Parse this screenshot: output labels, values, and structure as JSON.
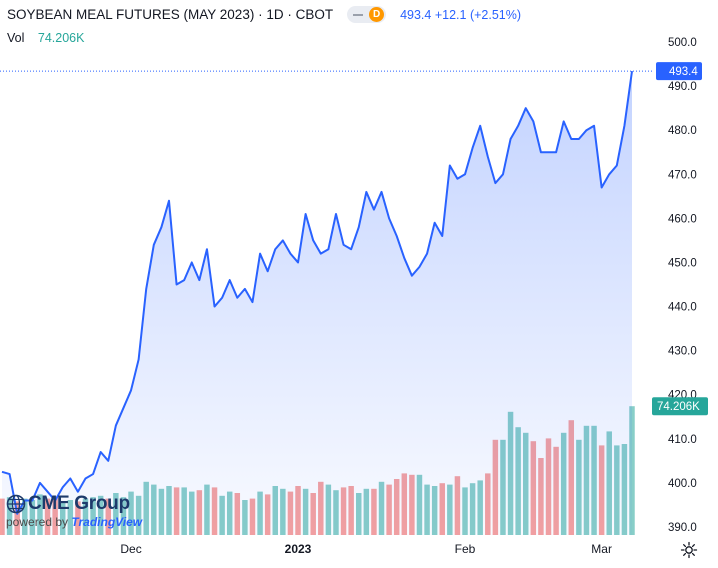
{
  "header": {
    "title": "SOYBEAN MEAL FUTURES (MAY 2023) · 1D · CBOT",
    "pill_letter": "D",
    "last": "493.4",
    "change": "+12.1",
    "change_pct": "(+2.51%)"
  },
  "volume": {
    "label": "Vol",
    "value": "74.206K"
  },
  "logo": {
    "brand": "CME Group",
    "powered": "powered by",
    "tv": "TradingView"
  },
  "colors": {
    "line": "#2962ff",
    "vol_up": "#26a69a",
    "vol_down": "#ef5350"
  },
  "chart_data": {
    "type": "line",
    "x_tick_labels": [
      "Dec",
      "2023",
      "Feb",
      "Mar"
    ],
    "y_tick_labels": [
      "500.0",
      "490.0",
      "480.0",
      "470.0",
      "460.0",
      "450.0",
      "440.0",
      "430.0",
      "420.0",
      "410.0",
      "400.0",
      "390.0"
    ],
    "ylim": [
      385,
      505
    ],
    "last_price_label": "493.4",
    "last_volume_label": "74.206K",
    "price": [
      402.5,
      402,
      393,
      396,
      396,
      400,
      398,
      396,
      399,
      401,
      398,
      401,
      402,
      407,
      405,
      413,
      417,
      421,
      428,
      444,
      454,
      458,
      464,
      445,
      446,
      450,
      446,
      453,
      440,
      442,
      446,
      442,
      444,
      441,
      452,
      448,
      453,
      455,
      452,
      450,
      461,
      455,
      452,
      453,
      461,
      454,
      453,
      458,
      466,
      462,
      466,
      460,
      456,
      451,
      447,
      449,
      452,
      459,
      456,
      472,
      469,
      470,
      476,
      481,
      474,
      468,
      470,
      478,
      481,
      485,
      482,
      475,
      475,
      475,
      482,
      478,
      478,
      480,
      481,
      467,
      470,
      472,
      481,
      493.4
    ],
    "volume": [
      0.26,
      0.27,
      0.24,
      0.26,
      0.25,
      0.29,
      0.26,
      0.27,
      0.24,
      0.25,
      0.24,
      0.26,
      0.27,
      0.28,
      0.26,
      0.3,
      0.27,
      0.31,
      0.28,
      0.38,
      0.36,
      0.33,
      0.35,
      0.34,
      0.34,
      0.31,
      0.32,
      0.36,
      0.34,
      0.28,
      0.31,
      0.3,
      0.25,
      0.26,
      0.31,
      0.29,
      0.35,
      0.33,
      0.31,
      0.35,
      0.33,
      0.3,
      0.38,
      0.36,
      0.32,
      0.34,
      0.35,
      0.3,
      0.33,
      0.33,
      0.38,
      0.36,
      0.4,
      0.44,
      0.43,
      0.43,
      0.36,
      0.35,
      0.37,
      0.36,
      0.42,
      0.34,
      0.37,
      0.39,
      0.44,
      0.68,
      0.68,
      0.88,
      0.77,
      0.73,
      0.67,
      0.55,
      0.69,
      0.63,
      0.73,
      0.82,
      0.68,
      0.78,
      0.78,
      0.64,
      0.74,
      0.64,
      0.65,
      0.92
    ],
    "volume_up": [
      false,
      true,
      false,
      true,
      true,
      true,
      false,
      false,
      true,
      true,
      false,
      true,
      true,
      true,
      false,
      true,
      true,
      true,
      true,
      true,
      true,
      true,
      true,
      false,
      true,
      true,
      false,
      true,
      false,
      true,
      true,
      false,
      true,
      false,
      true,
      false,
      true,
      true,
      false,
      false,
      true,
      false,
      false,
      true,
      true,
      false,
      false,
      true,
      true,
      false,
      true,
      false,
      false,
      false,
      false,
      true,
      true,
      true,
      false,
      true,
      false,
      true,
      true,
      true,
      false,
      false,
      true,
      true,
      true,
      true,
      false,
      false,
      false,
      false,
      true,
      false,
      true,
      true,
      true,
      false,
      true,
      true,
      true,
      true
    ]
  }
}
